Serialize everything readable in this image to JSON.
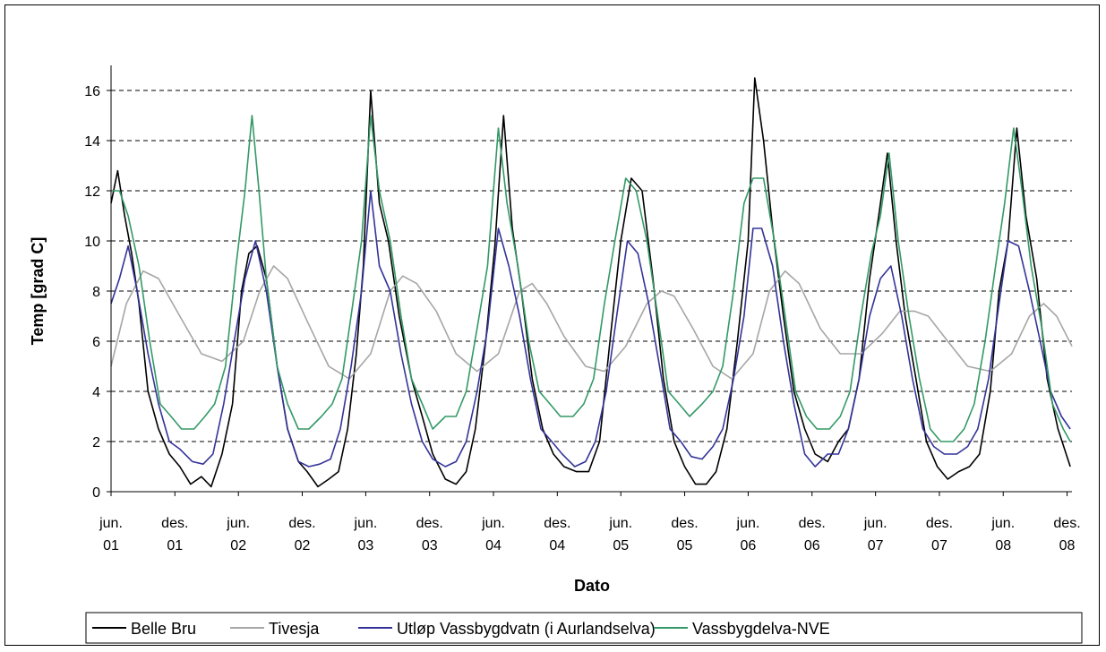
{
  "chart_data": {
    "type": "line",
    "title": "",
    "xlabel": "Dato",
    "ylabel": "Temp [grad C]",
    "ylim": [
      0,
      17
    ],
    "yticks": [
      0,
      2,
      4,
      6,
      8,
      10,
      12,
      14,
      16
    ],
    "grid": "horizontal dashed",
    "legend_placement": "bottom",
    "xlim": [
      "2001-06-01",
      "2008-12-15"
    ],
    "xtick_dates": [
      "2001-06-01",
      "2001-12-01",
      "2002-06-01",
      "2002-12-01",
      "2003-06-01",
      "2003-12-01",
      "2004-06-01",
      "2004-12-01",
      "2005-06-01",
      "2005-12-01",
      "2006-06-01",
      "2006-12-01",
      "2007-06-01",
      "2007-12-01",
      "2008-06-01",
      "2008-12-01"
    ],
    "xtick_labels": [
      [
        "jun.",
        "01"
      ],
      [
        "des.",
        "01"
      ],
      [
        "jun.",
        "02"
      ],
      [
        "des.",
        "02"
      ],
      [
        "jun.",
        "03"
      ],
      [
        "des.",
        "03"
      ],
      [
        "jun.",
        "04"
      ],
      [
        "des.",
        "04"
      ],
      [
        "jun.",
        "05"
      ],
      [
        "des.",
        "05"
      ],
      [
        "jun.",
        "06"
      ],
      [
        "des.",
        "06"
      ],
      [
        "jun.",
        "07"
      ],
      [
        "des.",
        "07"
      ],
      [
        "jun.",
        "08"
      ],
      [
        "des.",
        "08"
      ]
    ],
    "series": [
      {
        "name": "Belle Bru",
        "color": "#000000",
        "x": [
          "2001-06-01",
          "2001-06-20",
          "2001-07-10",
          "2001-07-30",
          "2001-08-20",
          "2001-09-15",
          "2001-10-15",
          "2001-11-15",
          "2001-12-15",
          "2002-01-15",
          "2002-02-15",
          "2002-03-15",
          "2002-04-15",
          "2002-05-15",
          "2002-06-10",
          "2002-07-01",
          "2002-07-25",
          "2002-08-20",
          "2002-09-20",
          "2002-10-20",
          "2002-11-20",
          "2002-12-15",
          "2003-01-15",
          "2003-02-15",
          "2003-03-15",
          "2003-04-10",
          "2003-05-05",
          "2003-05-25",
          "2003-06-15",
          "2003-07-10",
          "2003-08-05",
          "2003-09-05",
          "2003-10-10",
          "2003-11-10",
          "2003-12-10",
          "2004-01-15",
          "2004-02-15",
          "2004-03-15",
          "2004-04-10",
          "2004-05-10",
          "2004-06-05",
          "2004-06-30",
          "2004-07-25",
          "2004-08-20",
          "2004-09-20",
          "2004-10-20",
          "2004-11-20",
          "2004-12-20",
          "2005-01-25",
          "2005-03-01",
          "2005-04-01",
          "2005-05-01",
          "2005-06-01",
          "2005-07-01",
          "2005-08-01",
          "2005-09-01",
          "2005-10-01",
          "2005-11-01",
          "2005-12-01",
          "2006-01-01",
          "2006-02-01",
          "2006-03-01",
          "2006-04-01",
          "2006-05-01",
          "2006-06-01",
          "2006-06-20",
          "2006-07-15",
          "2006-08-10",
          "2006-09-10",
          "2006-10-10",
          "2006-11-10",
          "2006-12-10",
          "2007-01-15",
          "2007-02-15",
          "2007-03-15",
          "2007-04-15",
          "2007-05-15",
          "2007-06-10",
          "2007-07-05",
          "2007-07-30",
          "2007-08-25",
          "2007-09-25",
          "2007-10-25",
          "2007-11-25",
          "2007-12-25",
          "2008-01-25",
          "2008-02-25",
          "2008-03-25",
          "2008-04-25",
          "2008-05-20",
          "2008-06-15",
          "2008-07-10",
          "2008-08-05",
          "2008-09-05",
          "2008-10-05",
          "2008-11-05",
          "2008-12-10"
        ],
        "values": [
          11.5,
          12.8,
          11.0,
          9.5,
          7.5,
          4.0,
          2.5,
          1.5,
          1.0,
          0.3,
          0.6,
          0.2,
          1.5,
          3.5,
          8.0,
          9.5,
          9.8,
          8.5,
          5.0,
          2.5,
          1.2,
          0.8,
          0.2,
          0.5,
          0.8,
          2.5,
          5.5,
          9.0,
          16.0,
          11.5,
          10.0,
          7.0,
          4.5,
          3.0,
          1.5,
          0.5,
          0.3,
          0.8,
          2.5,
          6.0,
          9.8,
          15.0,
          10.5,
          8.0,
          4.5,
          2.5,
          1.5,
          1.0,
          0.8,
          0.8,
          2.0,
          6.0,
          10.0,
          12.5,
          12.0,
          8.5,
          4.5,
          2.0,
          1.0,
          0.3,
          0.3,
          0.8,
          2.5,
          6.0,
          10.0,
          16.5,
          14.0,
          10.5,
          7.0,
          4.0,
          2.5,
          1.5,
          1.2,
          2.0,
          2.5,
          4.5,
          8.5,
          11.0,
          13.5,
          10.0,
          7.0,
          4.5,
          2.0,
          1.0,
          0.5,
          0.8,
          1.0,
          1.5,
          4.0,
          8.0,
          10.0,
          14.5,
          11.0,
          8.5,
          4.5,
          2.5,
          1.0
        ]
      },
      {
        "name": "Tivesja",
        "color": "#a6a6a6",
        "x": [
          "2001-06-01",
          "2001-07-15",
          "2001-09-01",
          "2001-10-15",
          "2001-12-15",
          "2002-02-15",
          "2002-04-15",
          "2002-06-15",
          "2002-08-01",
          "2002-09-10",
          "2002-10-20",
          "2002-12-15",
          "2003-02-15",
          "2003-04-15",
          "2003-06-15",
          "2003-08-10",
          "2003-09-15",
          "2003-10-25",
          "2003-12-20",
          "2004-02-15",
          "2004-04-15",
          "2004-06-15",
          "2004-08-15",
          "2004-09-20",
          "2004-11-01",
          "2004-12-20",
          "2005-02-20",
          "2005-04-15",
          "2005-06-15",
          "2005-08-15",
          "2005-09-25",
          "2005-11-01",
          "2005-12-25",
          "2006-02-20",
          "2006-04-15",
          "2006-06-15",
          "2006-08-01",
          "2006-09-15",
          "2006-10-25",
          "2006-12-25",
          "2007-02-20",
          "2007-04-20",
          "2007-06-20",
          "2007-08-10",
          "2007-09-20",
          "2007-10-30",
          "2007-12-25",
          "2008-02-20",
          "2008-04-25",
          "2008-06-25",
          "2008-08-15",
          "2008-09-25",
          "2008-11-01",
          "2008-12-15"
        ],
        "values": [
          5.0,
          7.5,
          8.8,
          8.5,
          7.0,
          5.5,
          5.2,
          6.0,
          8.0,
          9.0,
          8.5,
          6.8,
          5.0,
          4.5,
          5.5,
          8.0,
          8.6,
          8.3,
          7.2,
          5.5,
          4.8,
          5.5,
          8.0,
          8.3,
          7.5,
          6.2,
          5.0,
          4.8,
          5.8,
          7.5,
          8.0,
          7.8,
          6.5,
          5.0,
          4.5,
          5.5,
          8.0,
          8.8,
          8.3,
          6.5,
          5.5,
          5.5,
          6.3,
          7.2,
          7.2,
          7.0,
          6.0,
          5.0,
          4.8,
          5.5,
          7.0,
          7.5,
          7.0,
          5.8
        ]
      },
      {
        "name": "Utløp Vassbygdvatn (i Aurlandselva)",
        "color": "#333399",
        "x": [
          "2001-06-01",
          "2001-06-25",
          "2001-07-20",
          "2001-08-15",
          "2001-09-15",
          "2001-10-15",
          "2001-11-15",
          "2001-12-15",
          "2002-01-20",
          "2002-02-20",
          "2002-03-20",
          "2002-04-20",
          "2002-05-20",
          "2002-06-20",
          "2002-07-20",
          "2002-08-20",
          "2002-09-20",
          "2002-10-20",
          "2002-11-20",
          "2002-12-20",
          "2003-01-20",
          "2003-02-20",
          "2003-03-20",
          "2003-04-20",
          "2003-05-20",
          "2003-06-15",
          "2003-07-10",
          "2003-08-10",
          "2003-09-10",
          "2003-10-10",
          "2003-11-10",
          "2003-12-10",
          "2004-01-15",
          "2004-02-15",
          "2004-03-15",
          "2004-04-15",
          "2004-05-15",
          "2004-06-15",
          "2004-07-15",
          "2004-08-15",
          "2004-09-15",
          "2004-10-15",
          "2004-11-15",
          "2004-12-15",
          "2005-01-20",
          "2005-02-20",
          "2005-03-20",
          "2005-04-20",
          "2005-05-20",
          "2005-06-20",
          "2005-07-20",
          "2005-08-20",
          "2005-09-20",
          "2005-10-20",
          "2005-11-20",
          "2005-12-20",
          "2006-01-20",
          "2006-02-20",
          "2006-03-20",
          "2006-04-20",
          "2006-05-20",
          "2006-06-15",
          "2006-07-10",
          "2006-08-10",
          "2006-09-10",
          "2006-10-10",
          "2006-11-10",
          "2006-12-10",
          "2007-01-15",
          "2007-02-15",
          "2007-03-15",
          "2007-04-15",
          "2007-05-15",
          "2007-06-15",
          "2007-07-15",
          "2007-08-15",
          "2007-09-15",
          "2007-10-15",
          "2007-11-15",
          "2007-12-15",
          "2008-01-20",
          "2008-02-20",
          "2008-03-20",
          "2008-04-20",
          "2008-05-20",
          "2008-06-15",
          "2008-07-15",
          "2008-08-15",
          "2008-09-15",
          "2008-10-15",
          "2008-11-15",
          "2008-12-10"
        ],
        "values": [
          7.5,
          8.5,
          9.8,
          8.0,
          5.5,
          3.5,
          2.0,
          1.7,
          1.2,
          1.1,
          1.5,
          3.5,
          6.0,
          8.5,
          10.0,
          8.0,
          5.0,
          2.5,
          1.2,
          1.0,
          1.1,
          1.3,
          2.5,
          5.0,
          8.0,
          12.0,
          9.0,
          8.0,
          5.5,
          3.5,
          2.0,
          1.3,
          1.0,
          1.2,
          2.0,
          4.0,
          6.5,
          10.5,
          9.0,
          7.0,
          4.5,
          2.5,
          2.0,
          1.5,
          1.0,
          1.2,
          2.0,
          4.0,
          7.0,
          10.0,
          9.5,
          7.5,
          5.0,
          2.5,
          2.0,
          1.4,
          1.3,
          1.8,
          2.5,
          4.5,
          7.0,
          10.5,
          10.5,
          9.0,
          6.0,
          3.5,
          1.5,
          1.0,
          1.5,
          1.5,
          2.5,
          4.5,
          7.0,
          8.5,
          9.0,
          7.0,
          4.5,
          2.5,
          1.8,
          1.5,
          1.5,
          1.8,
          2.5,
          4.5,
          7.5,
          10.0,
          9.8,
          8.0,
          6.0,
          4.0,
          3.0,
          2.5
        ]
      },
      {
        "name": "Vassbygdelva-NVE",
        "color": "#339966",
        "x": [
          "2001-06-01",
          "2001-06-25",
          "2001-07-20",
          "2001-08-20",
          "2001-09-20",
          "2001-10-20",
          "2001-11-20",
          "2001-12-20",
          "2002-01-25",
          "2002-02-25",
          "2002-03-25",
          "2002-04-25",
          "2002-05-25",
          "2002-06-20",
          "2002-07-10",
          "2002-07-30",
          "2002-08-20",
          "2002-09-20",
          "2002-10-20",
          "2002-11-20",
          "2002-12-20",
          "2003-01-25",
          "2003-02-25",
          "2003-03-25",
          "2003-04-25",
          "2003-05-20",
          "2003-06-15",
          "2003-07-10",
          "2003-08-10",
          "2003-09-10",
          "2003-10-10",
          "2003-11-10",
          "2003-12-10",
          "2004-01-15",
          "2004-02-15",
          "2004-03-15",
          "2004-04-15",
          "2004-05-15",
          "2004-06-15",
          "2004-07-10",
          "2004-08-10",
          "2004-09-10",
          "2004-10-10",
          "2004-11-10",
          "2004-12-10",
          "2005-01-15",
          "2005-02-15",
          "2005-03-15",
          "2005-04-15",
          "2005-05-15",
          "2005-06-15",
          "2005-07-15",
          "2005-08-15",
          "2005-09-15",
          "2005-10-15",
          "2005-11-15",
          "2005-12-15",
          "2006-01-20",
          "2006-02-20",
          "2006-03-20",
          "2006-04-20",
          "2006-05-20",
          "2006-06-15",
          "2006-07-15",
          "2006-08-15",
          "2006-09-15",
          "2006-10-15",
          "2006-11-15",
          "2006-12-15",
          "2007-01-20",
          "2007-02-20",
          "2007-03-20",
          "2007-04-20",
          "2007-05-20",
          "2007-06-15",
          "2007-07-10",
          "2007-08-05",
          "2007-09-05",
          "2007-10-05",
          "2007-11-05",
          "2007-12-05",
          "2008-01-10",
          "2008-02-10",
          "2008-03-10",
          "2008-04-10",
          "2008-05-10",
          "2008-06-05",
          "2008-07-01",
          "2008-07-25",
          "2008-08-20",
          "2008-09-20",
          "2008-10-20",
          "2008-11-20",
          "2008-12-10"
        ],
        "values": [
          12.0,
          12.0,
          11.0,
          9.0,
          6.0,
          3.5,
          3.0,
          2.5,
          2.5,
          3.0,
          3.5,
          5.0,
          9.0,
          12.0,
          15.0,
          12.0,
          8.5,
          5.0,
          3.5,
          2.5,
          2.5,
          3.0,
          3.5,
          4.5,
          7.5,
          10.0,
          15.0,
          12.0,
          10.0,
          7.0,
          4.5,
          3.5,
          2.5,
          3.0,
          3.0,
          4.0,
          6.5,
          9.0,
          14.5,
          11.5,
          9.0,
          6.0,
          4.0,
          3.5,
          3.0,
          3.0,
          3.5,
          4.5,
          7.5,
          10.0,
          12.5,
          12.0,
          10.0,
          7.0,
          4.0,
          3.5,
          3.0,
          3.5,
          4.0,
          5.0,
          8.0,
          11.5,
          12.5,
          12.5,
          10.0,
          7.0,
          4.0,
          3.0,
          2.5,
          2.5,
          3.0,
          4.0,
          7.0,
          9.5,
          11.0,
          13.5,
          10.0,
          7.0,
          4.5,
          2.5,
          2.0,
          2.0,
          2.5,
          3.5,
          6.0,
          9.0,
          11.5,
          14.5,
          12.0,
          9.0,
          6.5,
          3.5,
          2.5,
          2.0
        ]
      }
    ]
  }
}
